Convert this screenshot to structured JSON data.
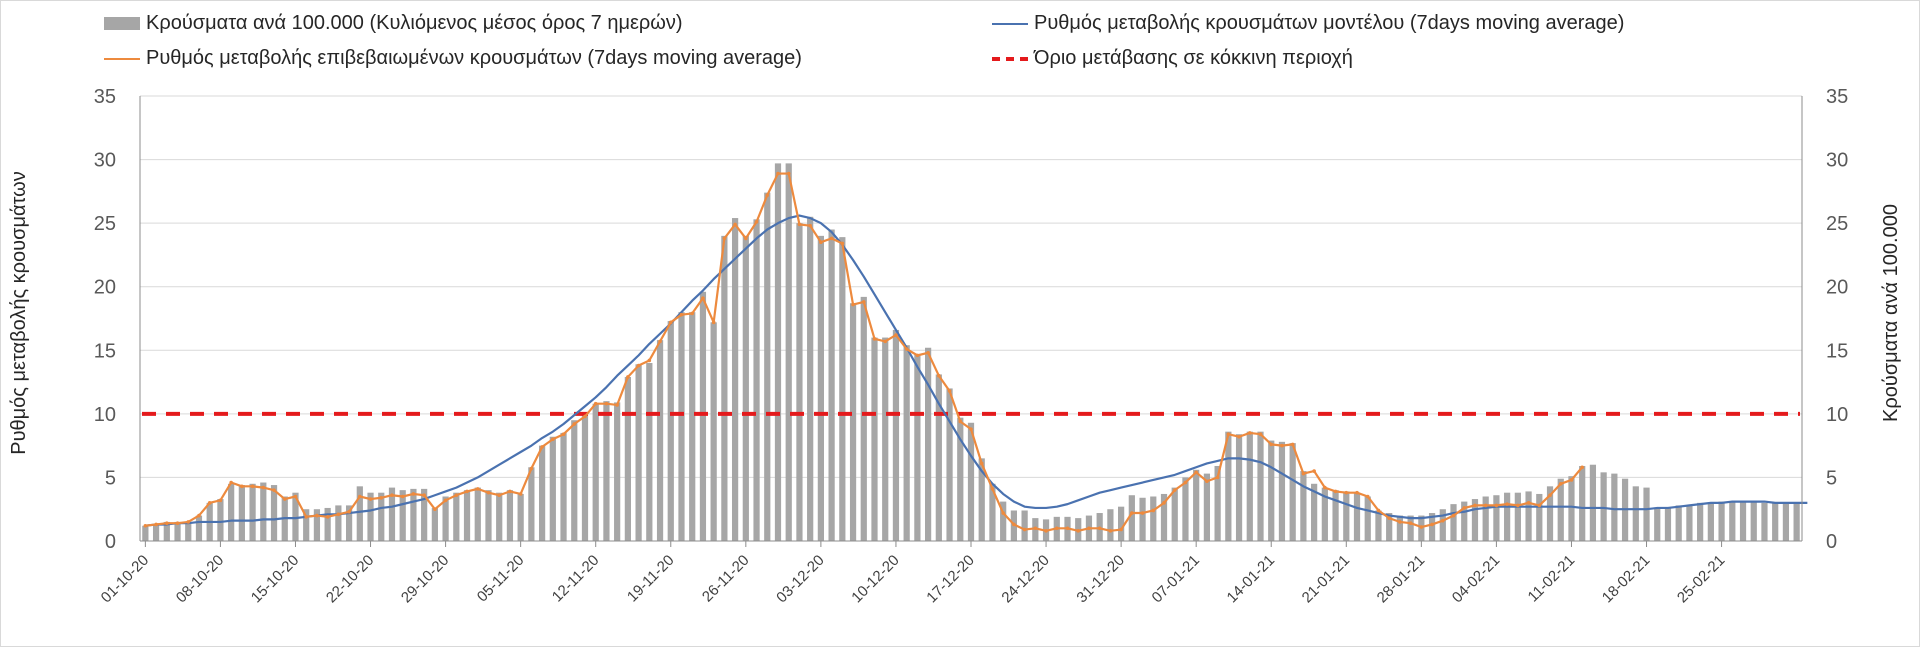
{
  "chart_data": {
    "type": "bar+line",
    "legend": {
      "bars": "Κρούσματα ανά 100.000 (Κυλιόμενος μέσος όρος 7 ημερών)",
      "model": "Ρυθμός μεταβολής κρουσμάτων μοντέλου (7days moving average)",
      "confirmed": "Ρυθμός μεταβολής επιβεβαιωμένων κρουσμάτων (7days moving average)",
      "threshold": "Όριο μετάβασης σε κόκκινη περιοχή"
    },
    "ylabel_left": "Ρυθμός μεταβολής κρουσμάτων",
    "ylabel_right": "Κρούσματα ανά 100.000",
    "ylim": [
      0,
      35
    ],
    "y_ticks": [
      "0",
      "5",
      "10",
      "15",
      "20",
      "25",
      "30",
      "35"
    ],
    "x_tick_labels": [
      "01-10-20",
      "08-10-20",
      "15-10-20",
      "22-10-20",
      "29-10-20",
      "05-11-20",
      "12-11-20",
      "19-11-20",
      "26-11-20",
      "03-12-20",
      "10-12-20",
      "17-12-20",
      "24-12-20",
      "31-12-20",
      "07-01-21",
      "14-01-21",
      "21-01-21",
      "28-01-21",
      "04-02-21",
      "11-02-21",
      "18-02-21",
      "25-02-21"
    ],
    "threshold": 10,
    "colors": {
      "bars": "#a6a6a6",
      "model": "#4a72b0",
      "confirmed": "#ed8a3e",
      "threshold": "#e41a1c",
      "grid": "#d9d9d9",
      "axis": "#8c8c8c"
    },
    "bars": [
      1.2,
      1.3,
      1.5,
      1.5,
      1.5,
      2.0,
      3.0,
      3.3,
      4.5,
      4.4,
      4.5,
      4.6,
      4.4,
      3.5,
      3.8,
      2.5,
      2.5,
      2.6,
      2.8,
      2.8,
      4.3,
      3.8,
      3.8,
      4.2,
      4.0,
      4.1,
      4.1,
      2.6,
      3.5,
      3.8,
      4.0,
      4.2,
      4.0,
      3.8,
      4.0,
      3.7,
      5.8,
      7.5,
      8.2,
      8.5,
      9.5,
      9.9,
      10.8,
      11.0,
      10.9,
      12.9,
      13.9,
      14.0,
      15.8,
      17.3,
      18.0,
      18.0,
      19.6,
      17.2,
      24.0,
      25.4,
      24.0,
      25.3,
      27.4,
      29.7,
      29.7,
      25.0,
      25.5,
      24.0,
      24.5,
      23.9,
      18.7,
      19.2,
      16.0,
      16.0,
      16.6,
      15.4,
      14.7,
      15.2,
      13.1,
      12.0,
      9.7,
      9.3,
      6.5,
      4.5,
      3.1,
      2.4,
      2.4,
      1.8,
      1.7,
      1.9,
      1.9,
      1.8,
      2.0,
      2.2,
      2.5,
      2.7,
      3.6,
      3.4,
      3.5,
      3.7,
      4.2,
      5.0,
      5.6,
      5.3,
      5.9,
      8.6,
      8.4,
      8.6,
      8.6,
      7.9,
      7.8,
      7.7,
      5.5,
      4.5,
      4.2,
      4.0,
      3.9,
      3.8,
      3.5,
      2.4,
      2.2,
      2.0,
      2.0,
      2.0,
      2.2,
      2.5,
      2.9,
      3.1,
      3.3,
      3.5,
      3.6,
      3.8,
      3.8,
      3.9,
      3.7,
      4.3,
      4.9,
      5.1,
      5.9,
      6.0,
      5.4,
      5.3,
      4.9,
      4.3,
      4.2,
      2.6,
      2.6,
      2.8,
      2.8,
      3.0,
      3.0,
      3.1,
      3.1,
      3.1,
      3.1,
      3.0,
      3.0,
      3.0,
      3.0
    ],
    "confirmed_series": [
      1.2,
      1.3,
      1.4,
      1.4,
      1.5,
      2.0,
      3.0,
      3.2,
      4.6,
      4.3,
      4.3,
      4.2,
      4.0,
      3.3,
      3.5,
      1.9,
      2.0,
      1.9,
      2.1,
      2.3,
      3.5,
      3.3,
      3.4,
      3.6,
      3.5,
      3.7,
      3.6,
      2.5,
      3.2,
      3.6,
      3.9,
      4.1,
      3.8,
      3.6,
      3.9,
      3.7,
      5.7,
      7.4,
      8.0,
      8.4,
      9.2,
      9.8,
      10.8,
      10.8,
      10.7,
      12.9,
      13.8,
      14.2,
      15.7,
      17.2,
      17.8,
      17.9,
      19.1,
      17.2,
      23.8,
      24.9,
      23.8,
      25.1,
      27.2,
      28.9,
      28.9,
      24.9,
      24.8,
      23.5,
      23.8,
      23.4,
      18.6,
      18.8,
      15.9,
      15.7,
      16.2,
      15.1,
      14.6,
      14.8,
      13.0,
      11.8,
      9.4,
      8.8,
      6.1,
      4.1,
      2.2,
      1.3,
      0.9,
      1.0,
      0.8,
      1.0,
      1.0,
      0.8,
      1.0,
      1.0,
      0.8,
      0.9,
      2.2,
      2.2,
      2.4,
      3.0,
      4.0,
      4.6,
      5.4,
      4.7,
      5.0,
      8.4,
      8.2,
      8.5,
      8.4,
      7.6,
      7.5,
      7.6,
      5.3,
      5.5,
      4.2,
      3.9,
      3.8,
      3.8,
      3.5,
      2.4,
      1.8,
      1.5,
      1.4,
      1.1,
      1.3,
      1.6,
      2.0,
      2.6,
      2.8,
      2.8,
      2.8,
      2.9,
      2.8,
      3.0,
      2.8,
      3.6,
      4.5,
      4.8,
      5.8,
      null,
      null,
      null,
      null,
      null,
      null,
      null,
      null,
      null,
      null,
      null,
      null,
      null,
      null,
      null,
      null,
      null,
      null,
      null,
      null,
      null
    ],
    "model_series": [
      1.2,
      1.3,
      1.3,
      1.4,
      1.4,
      1.5,
      1.5,
      1.5,
      1.6,
      1.6,
      1.6,
      1.7,
      1.7,
      1.8,
      1.8,
      1.9,
      2.0,
      2.1,
      2.1,
      2.2,
      2.3,
      2.4,
      2.6,
      2.7,
      2.9,
      3.1,
      3.3,
      3.6,
      3.9,
      4.2,
      4.6,
      5.0,
      5.5,
      6.0,
      6.5,
      7.0,
      7.5,
      8.1,
      8.6,
      9.2,
      9.9,
      10.6,
      11.3,
      12.1,
      13.0,
      13.8,
      14.6,
      15.5,
      16.3,
      17.1,
      18.0,
      18.9,
      19.7,
      20.6,
      21.4,
      22.2,
      23.0,
      23.8,
      24.5,
      25.0,
      25.4,
      25.6,
      25.4,
      25.0,
      24.3,
      23.3,
      22.1,
      20.8,
      19.4,
      18.0,
      16.6,
      15.2,
      13.7,
      12.3,
      10.8,
      9.4,
      8.0,
      6.7,
      5.5,
      4.5,
      3.7,
      3.1,
      2.7,
      2.6,
      2.6,
      2.7,
      2.9,
      3.2,
      3.5,
      3.8,
      4.0,
      4.2,
      4.4,
      4.6,
      4.8,
      5.0,
      5.2,
      5.5,
      5.8,
      6.1,
      6.3,
      6.5,
      6.5,
      6.4,
      6.2,
      5.8,
      5.3,
      4.8,
      4.3,
      3.9,
      3.5,
      3.2,
      2.9,
      2.6,
      2.4,
      2.2,
      2.0,
      1.9,
      1.8,
      1.8,
      1.9,
      2.0,
      2.2,
      2.3,
      2.5,
      2.6,
      2.7,
      2.7,
      2.7,
      2.7,
      2.7,
      2.7,
      2.7,
      2.7,
      2.6,
      2.6,
      2.6,
      2.5,
      2.5,
      2.5,
      2.5,
      2.6,
      2.6,
      2.7,
      2.8,
      2.9,
      3.0,
      3.0,
      3.1,
      3.1,
      3.1,
      3.1,
      3.0,
      3.0,
      3.0,
      3.0
    ]
  }
}
